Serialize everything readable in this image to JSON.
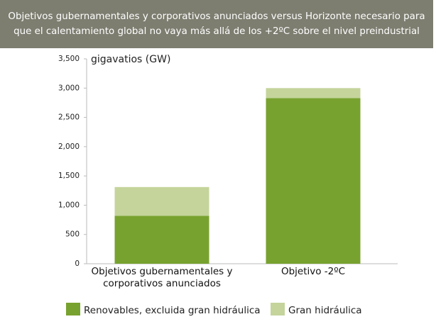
{
  "chart_data": {
    "type": "stacked-bar",
    "title": "Objetivos gubernamentales y corporativos anunciados versus Horizonte necesario para que el calentamiento global no vaya más allá de los +2ºC sobre el nivel preindustrial",
    "ylabel": "gigavatios (GW)",
    "categories": [
      "Objetivos gubernamentales y corporativos anunciados",
      "Objetivo -2ºC"
    ],
    "series": [
      {
        "name": "Renovables, excluida gran hidráulica",
        "color": "#78a22f",
        "values": [
          820,
          2830
        ]
      },
      {
        "name": "Gran hidráulica",
        "color": "#c4d49b",
        "values": [
          490,
          170
        ]
      }
    ],
    "ylim": [
      0,
      3500
    ],
    "yticks": [
      0,
      500,
      {
        "value": 1000,
        "label": "1,000"
      },
      {
        "value": 1500,
        "label": "1,500"
      },
      {
        "value": 2000,
        "label": "2,000"
      },
      {
        "value": 2500,
        "label": "2,500"
      },
      {
        "value": 3000,
        "label": "3,000"
      },
      {
        "value": 3500,
        "label": "3,500"
      }
    ],
    "grid": false,
    "legend": "bottom"
  }
}
